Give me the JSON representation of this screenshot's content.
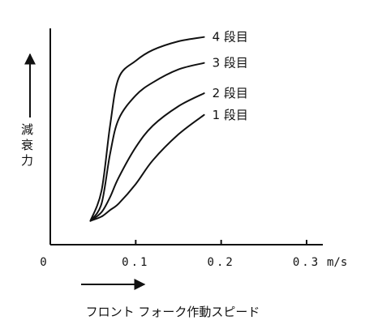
{
  "chart_data": {
    "type": "line",
    "title": "",
    "xlabel": "フロント フォーク作動スピード",
    "ylabel": "減衰力",
    "x_unit": "m/s",
    "xlim": [
      0,
      0.3
    ],
    "x_ticks": [
      "0",
      "0.1",
      "0.2",
      "0.3"
    ],
    "y_ticks": [],
    "grid": false,
    "legend": "curve-end labels",
    "series": [
      {
        "name": "4 段目",
        "x": [
          0.047,
          0.06,
          0.07,
          0.08,
          0.1,
          0.12,
          0.15,
          0.18
        ],
        "y": [
          0.11,
          0.25,
          0.55,
          0.77,
          0.85,
          0.9,
          0.94,
          0.96
        ]
      },
      {
        "name": "3 段目",
        "x": [
          0.047,
          0.06,
          0.07,
          0.08,
          0.1,
          0.12,
          0.15,
          0.18
        ],
        "y": [
          0.11,
          0.19,
          0.42,
          0.58,
          0.69,
          0.75,
          0.81,
          0.84
        ]
      },
      {
        "name": "2 段目",
        "x": [
          0.047,
          0.06,
          0.07,
          0.08,
          0.1,
          0.12,
          0.15,
          0.18
        ],
        "y": [
          0.11,
          0.15,
          0.22,
          0.31,
          0.45,
          0.55,
          0.64,
          0.7
        ]
      },
      {
        "name": "1 段目",
        "x": [
          0.047,
          0.06,
          0.07,
          0.08,
          0.1,
          0.12,
          0.15,
          0.18
        ],
        "y": [
          0.11,
          0.13,
          0.16,
          0.19,
          0.28,
          0.39,
          0.51,
          0.6
        ]
      }
    ]
  }
}
